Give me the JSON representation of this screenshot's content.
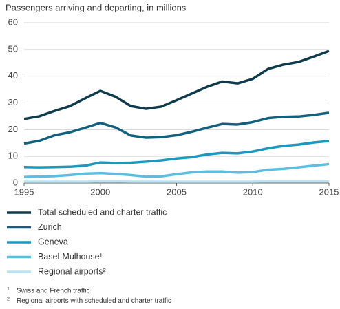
{
  "chart_data": {
    "type": "line",
    "title": "Passengers arriving and departing, in millions",
    "x": [
      1995,
      1996,
      1997,
      1998,
      1999,
      2000,
      2001,
      2002,
      2003,
      2004,
      2005,
      2006,
      2007,
      2008,
      2009,
      2010,
      2011,
      2012,
      2013,
      2014,
      2015
    ],
    "xlim": [
      1995,
      2015
    ],
    "xticks": [
      1995,
      2000,
      2005,
      2010,
      2015
    ],
    "ylim": [
      0,
      60
    ],
    "yticks": [
      0,
      10,
      20,
      30,
      40,
      50,
      60
    ],
    "grid": true,
    "series": [
      {
        "name": "Total scheduled and charter  traffic",
        "color": "#0e3b4b",
        "values": [
          24,
          25,
          27,
          28.8,
          31.7,
          34.5,
          32.3,
          28.8,
          27.8,
          28.6,
          31,
          33.5,
          36,
          38,
          37.3,
          39,
          42.7,
          44.3,
          45.3,
          47.3,
          49.4
        ]
      },
      {
        "name": "Zurich",
        "color": "#10607e",
        "values": [
          14.8,
          15.8,
          17.9,
          19,
          20.7,
          22.5,
          20.8,
          17.8,
          17,
          17.2,
          17.9,
          19.2,
          20.7,
          22.1,
          21.9,
          22.8,
          24.3,
          24.8,
          24.9,
          25.5,
          26.3
        ]
      },
      {
        "name": "Geneva",
        "color": "#1a98c0",
        "values": [
          6,
          5.9,
          6,
          6.1,
          6.5,
          7.7,
          7.5,
          7.6,
          8,
          8.5,
          9.2,
          9.7,
          10.7,
          11.3,
          11.1,
          11.8,
          13,
          13.9,
          14.4,
          15.2,
          15.7
        ]
      },
      {
        "name": "Basel-Mulhouse¹",
        "color": "#5cbde0",
        "values": [
          2.3,
          2.4,
          2.6,
          3,
          3.5,
          3.7,
          3.4,
          3,
          2.4,
          2.5,
          3.3,
          4,
          4.3,
          4.3,
          3.9,
          4.1,
          5,
          5.3,
          5.9,
          6.5,
          7.1
        ]
      },
      {
        "name": "Regional airports²",
        "color": "#b9e3f2",
        "values": [
          0.5,
          0.5,
          0.5,
          0.5,
          0.5,
          0.6,
          0.6,
          0.5,
          0.5,
          0.5,
          0.5,
          0.5,
          0.5,
          0.5,
          0.5,
          0.5,
          0.6,
          0.6,
          0.6,
          0.6,
          0.6
        ]
      }
    ],
    "footnotes": [
      {
        "marker": "1",
        "text": "Swiss and French traffic"
      },
      {
        "marker": "2",
        "text": "Regional airports with scheduled and charter traffic"
      }
    ]
  }
}
